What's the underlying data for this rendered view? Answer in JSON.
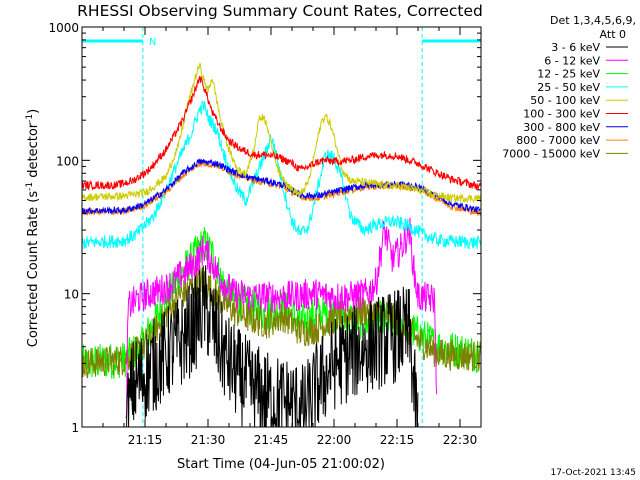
{
  "chart_data": {
    "type": "line",
    "title": "RHESSI Observing Summary Count Rates, Corrected",
    "xlabel": "Start Time (04-Jun-05 21:00:02)",
    "ylabel_main": "Corrected Count Rate (s",
    "ylabel_sup1": "-1",
    "ylabel_mid": " detector",
    "ylabel_sup2": "-1",
    "ylabel_end": ")",
    "yscale": "log",
    "ylim": [
      1,
      1000
    ],
    "xlim_minutes": [
      0,
      95
    ],
    "x_ticks": [
      {
        "label": "21:15",
        "min": 15
      },
      {
        "label": "21:30",
        "min": 30
      },
      {
        "label": "21:45",
        "min": 45
      },
      {
        "label": "22:00",
        "min": 60
      },
      {
        "label": "22:15",
        "min": 75
      },
      {
        "label": "22:30",
        "min": 90
      }
    ],
    "y_ticks": [
      {
        "label": "1",
        "value": 1
      },
      {
        "label": "10",
        "value": 10
      },
      {
        "label": "100",
        "value": 100
      },
      {
        "label": "1000",
        "value": 1000
      }
    ],
    "legend_header": [
      "Det 1,3,4,5,6,9,",
      "Att 0"
    ],
    "night_label": "N",
    "night_periods": [
      [
        0,
        14.5
      ],
      [
        81,
        95
      ]
    ],
    "date_stamp": "17-Oct-2021 13:45",
    "series": [
      {
        "name": "3 - 6 keV",
        "color": "#000000",
        "noise": 0.45,
        "points": [
          [
            10.5,
            1
          ],
          [
            12,
            2
          ],
          [
            15,
            2.5
          ],
          [
            20,
            3.5
          ],
          [
            24,
            4.5
          ],
          [
            27,
            6
          ],
          [
            29,
            8
          ],
          [
            31,
            6
          ],
          [
            33,
            4
          ],
          [
            35,
            3
          ],
          [
            37,
            2.5
          ],
          [
            40,
            2
          ],
          [
            45,
            1.6
          ],
          [
            50,
            1.5
          ],
          [
            53,
            1.3
          ],
          [
            56,
            2
          ],
          [
            60,
            3
          ],
          [
            64,
            3.5
          ],
          [
            68,
            4
          ],
          [
            72,
            4.5
          ],
          [
            76,
            5
          ],
          [
            78,
            5
          ],
          [
            79,
            2
          ],
          [
            80,
            1
          ]
        ]
      },
      {
        "name": "6 - 12 keV",
        "color": "#ff00ff",
        "noise": 0.12,
        "points": [
          [
            10.5,
            1
          ],
          [
            11,
            8
          ],
          [
            13,
            9
          ],
          [
            16,
            10
          ],
          [
            20,
            11
          ],
          [
            24,
            14
          ],
          [
            27,
            17
          ],
          [
            29,
            22
          ],
          [
            31,
            17
          ],
          [
            33,
            13
          ],
          [
            36,
            10
          ],
          [
            40,
            9.5
          ],
          [
            45,
            9.5
          ],
          [
            50,
            9.5
          ],
          [
            55,
            10
          ],
          [
            60,
            9.5
          ],
          [
            64,
            9.5
          ],
          [
            68,
            10
          ],
          [
            70,
            12
          ],
          [
            72,
            30
          ],
          [
            74,
            18
          ],
          [
            76,
            22
          ],
          [
            78,
            30
          ],
          [
            79,
            15
          ],
          [
            80,
            9.5
          ],
          [
            84,
            9
          ],
          [
            84.5,
            1
          ]
        ]
      },
      {
        "name": "12 - 25 keV",
        "color": "#00ff00",
        "noise": 0.14,
        "points": [
          [
            0,
            3
          ],
          [
            10,
            3.2
          ],
          [
            14,
            4
          ],
          [
            17,
            6
          ],
          [
            20,
            9
          ],
          [
            23,
            13
          ],
          [
            26,
            18
          ],
          [
            29,
            24
          ],
          [
            31,
            20
          ],
          [
            33,
            13
          ],
          [
            36,
            9
          ],
          [
            40,
            8
          ],
          [
            44,
            7
          ],
          [
            48,
            8
          ],
          [
            52,
            6
          ],
          [
            56,
            7
          ],
          [
            60,
            7
          ],
          [
            64,
            6.5
          ],
          [
            68,
            6
          ],
          [
            72,
            6.5
          ],
          [
            76,
            6
          ],
          [
            80,
            5
          ],
          [
            85,
            4
          ],
          [
            95,
            3.5
          ]
        ]
      },
      {
        "name": "25 - 50 keV",
        "color": "#00ffff",
        "noise": 0.05,
        "points": [
          [
            0,
            24
          ],
          [
            5,
            24.5
          ],
          [
            10,
            25
          ],
          [
            13,
            28
          ],
          [
            17,
            38
          ],
          [
            20,
            60
          ],
          [
            23,
            100
          ],
          [
            26,
            160
          ],
          [
            28,
            240
          ],
          [
            29,
            260
          ],
          [
            30,
            210
          ],
          [
            31,
            190
          ],
          [
            32,
            170
          ],
          [
            33,
            135
          ],
          [
            35,
            85
          ],
          [
            37,
            60
          ],
          [
            39,
            50
          ],
          [
            41,
            70
          ],
          [
            44,
            120
          ],
          [
            45,
            150
          ],
          [
            46,
            120
          ],
          [
            48,
            60
          ],
          [
            50,
            35
          ],
          [
            52,
            28
          ],
          [
            54,
            32
          ],
          [
            56,
            60
          ],
          [
            58,
            110
          ],
          [
            60,
            105
          ],
          [
            62,
            70
          ],
          [
            64,
            38
          ],
          [
            67,
            30
          ],
          [
            70,
            33
          ],
          [
            74,
            35
          ],
          [
            78,
            32
          ],
          [
            81,
            28
          ],
          [
            85,
            25
          ],
          [
            95,
            24
          ]
        ]
      },
      {
        "name": "50 - 100 keV",
        "color": "#cccc00",
        "noise": 0.03,
        "points": [
          [
            0,
            53
          ],
          [
            10,
            54
          ],
          [
            15,
            57
          ],
          [
            20,
            75
          ],
          [
            23,
            130
          ],
          [
            25,
            250
          ],
          [
            27,
            420
          ],
          [
            28,
            520
          ],
          [
            29,
            400
          ],
          [
            30,
            330
          ],
          [
            31,
            420
          ],
          [
            32,
            290
          ],
          [
            33,
            200
          ],
          [
            35,
            120
          ],
          [
            37,
            85
          ],
          [
            39,
            80
          ],
          [
            41,
            120
          ],
          [
            42,
            200
          ],
          [
            43,
            215
          ],
          [
            44,
            190
          ],
          [
            45,
            135
          ],
          [
            47,
            80
          ],
          [
            50,
            60
          ],
          [
            52,
            55
          ],
          [
            54,
            70
          ],
          [
            56,
            140
          ],
          [
            57,
            195
          ],
          [
            58,
            215
          ],
          [
            59,
            190
          ],
          [
            60,
            150
          ],
          [
            62,
            85
          ],
          [
            64,
            70
          ],
          [
            68,
            68
          ],
          [
            72,
            65
          ],
          [
            76,
            64
          ],
          [
            80,
            60
          ],
          [
            84,
            55
          ],
          [
            88,
            52
          ],
          [
            95,
            52
          ]
        ]
      },
      {
        "name": "100 - 300 keV",
        "color": "#ff0000",
        "noise": 0.03,
        "points": [
          [
            0,
            65
          ],
          [
            8,
            65
          ],
          [
            12,
            70
          ],
          [
            16,
            85
          ],
          [
            20,
            120
          ],
          [
            24,
            200
          ],
          [
            27,
            340
          ],
          [
            28,
            420
          ],
          [
            29,
            360
          ],
          [
            31,
            230
          ],
          [
            33,
            175
          ],
          [
            35,
            140
          ],
          [
            38,
            120
          ],
          [
            41,
            110
          ],
          [
            44,
            110
          ],
          [
            47,
            105
          ],
          [
            50,
            95
          ],
          [
            52,
            85
          ],
          [
            54,
            90
          ],
          [
            56,
            97
          ],
          [
            58,
            100
          ],
          [
            60,
            98
          ],
          [
            64,
            100
          ],
          [
            68,
            108
          ],
          [
            72,
            110
          ],
          [
            75,
            108
          ],
          [
            78,
            100
          ],
          [
            80,
            95
          ],
          [
            84,
            82
          ],
          [
            88,
            72
          ],
          [
            95,
            63
          ]
        ]
      },
      {
        "name": "300 - 800 keV",
        "color": "#0000ff",
        "noise": 0.025,
        "points": [
          [
            0,
            42
          ],
          [
            10,
            42
          ],
          [
            15,
            47
          ],
          [
            20,
            60
          ],
          [
            24,
            80
          ],
          [
            28,
            98
          ],
          [
            32,
            95
          ],
          [
            36,
            82
          ],
          [
            40,
            74
          ],
          [
            44,
            70
          ],
          [
            48,
            65
          ],
          [
            52,
            55
          ],
          [
            56,
            54
          ],
          [
            60,
            58
          ],
          [
            64,
            62
          ],
          [
            68,
            65
          ],
          [
            72,
            66
          ],
          [
            76,
            66
          ],
          [
            80,
            63
          ],
          [
            84,
            55
          ],
          [
            88,
            47
          ],
          [
            95,
            42
          ]
        ]
      },
      {
        "name": "800 - 7000 keV",
        "color": "#ff8000",
        "noise": 0.025,
        "points": [
          [
            0,
            41
          ],
          [
            10,
            41
          ],
          [
            15,
            46
          ],
          [
            20,
            58
          ],
          [
            24,
            77
          ],
          [
            28,
            95
          ],
          [
            32,
            92
          ],
          [
            36,
            80
          ],
          [
            40,
            72
          ],
          [
            44,
            68
          ],
          [
            48,
            63
          ],
          [
            52,
            53
          ],
          [
            56,
            52
          ],
          [
            60,
            56
          ],
          [
            64,
            60
          ],
          [
            68,
            63
          ],
          [
            72,
            64
          ],
          [
            76,
            64
          ],
          [
            80,
            61
          ],
          [
            84,
            53
          ],
          [
            88,
            45
          ],
          [
            95,
            40
          ]
        ]
      },
      {
        "name": "7000 - 15000 keV",
        "color": "#808000",
        "noise": 0.12,
        "points": [
          [
            0,
            3
          ],
          [
            10,
            3.2
          ],
          [
            14,
            3.8
          ],
          [
            17,
            5
          ],
          [
            20,
            7
          ],
          [
            23,
            9.5
          ],
          [
            26,
            11
          ],
          [
            28,
            13
          ],
          [
            30,
            11.5
          ],
          [
            33,
            9
          ],
          [
            36,
            7.5
          ],
          [
            40,
            6.5
          ],
          [
            44,
            6
          ],
          [
            48,
            6.8
          ],
          [
            52,
            5.2
          ],
          [
            56,
            5.5
          ],
          [
            60,
            6.5
          ],
          [
            64,
            7
          ],
          [
            68,
            7.5
          ],
          [
            72,
            7
          ],
          [
            76,
            6
          ],
          [
            80,
            4.5
          ],
          [
            85,
            3.5
          ],
          [
            95,
            3.4
          ]
        ]
      }
    ]
  }
}
